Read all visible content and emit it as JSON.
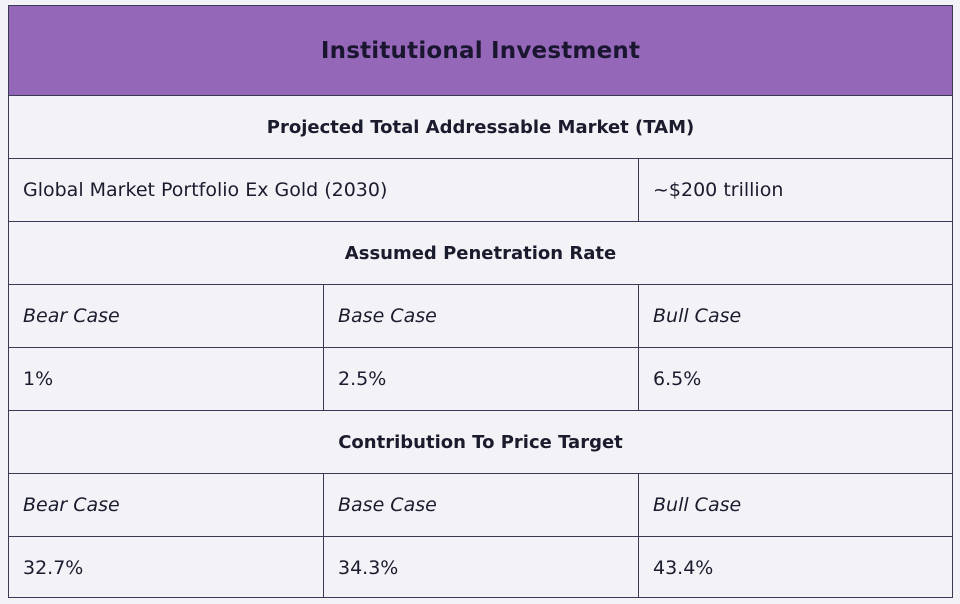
{
  "title": "Institutional Investment",
  "tam": {
    "heading": "Projected Total Addressable Market (TAM)",
    "label": "Global Market Portfolio Ex Gold (2030)",
    "value": "~$200 trillion"
  },
  "penetration": {
    "heading": "Assumed Penetration Rate",
    "cases": [
      "Bear Case",
      "Base Case",
      "Bull Case"
    ],
    "values": [
      "1%",
      "2.5%",
      "6.5%"
    ]
  },
  "contribution": {
    "heading": "Contribution To Price Target",
    "cases": [
      "Bear Case",
      "Base Case",
      "Bull Case"
    ],
    "values": [
      "32.7%",
      "34.3%",
      "43.4%"
    ]
  }
}
